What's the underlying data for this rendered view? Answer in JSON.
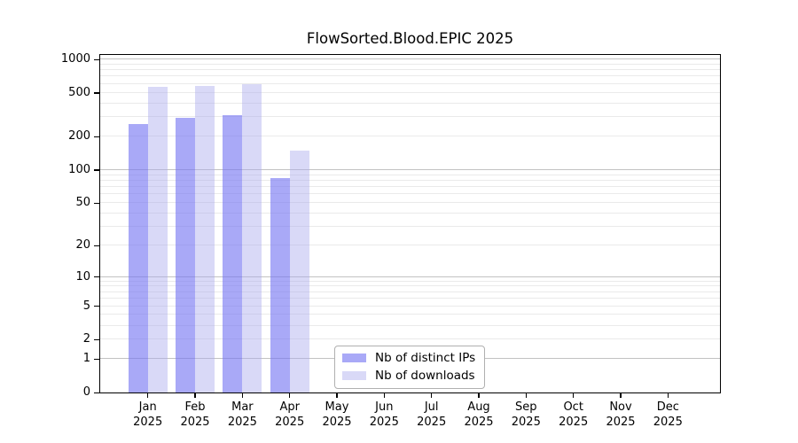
{
  "chart_data": {
    "type": "bar",
    "title": "FlowSorted.Blood.EPIC 2025",
    "year_label": "2025",
    "categories": [
      "Jan",
      "Feb",
      "Mar",
      "Apr",
      "May",
      "Jun",
      "Jul",
      "Aug",
      "Sep",
      "Oct",
      "Nov",
      "Dec"
    ],
    "series": [
      {
        "name": "Nb of distinct IPs",
        "swatch_color": "#a9a9f7",
        "fill_color": "rgba(116,116,242,0.62)",
        "values": [
          260,
          295,
          315,
          85,
          null,
          null,
          null,
          null,
          null,
          null,
          null,
          null
        ]
      },
      {
        "name": "Nb of downloads",
        "swatch_color": "#d9d9f7",
        "fill_color": "rgba(171,171,237,0.45)",
        "values": [
          565,
          580,
          600,
          150,
          null,
          null,
          null,
          null,
          null,
          null,
          null,
          null
        ]
      }
    ],
    "yscale": "log1p",
    "ylim": [
      0,
      1096
    ],
    "ytick_values": [
      1000,
      500,
      200,
      100,
      50,
      20,
      10,
      5,
      2,
      1,
      0
    ],
    "grid": true,
    "grid_minor_color": "#eaeaea",
    "grid_major_color": "#c2c2c2",
    "legend_position": "bottom-center-left"
  }
}
